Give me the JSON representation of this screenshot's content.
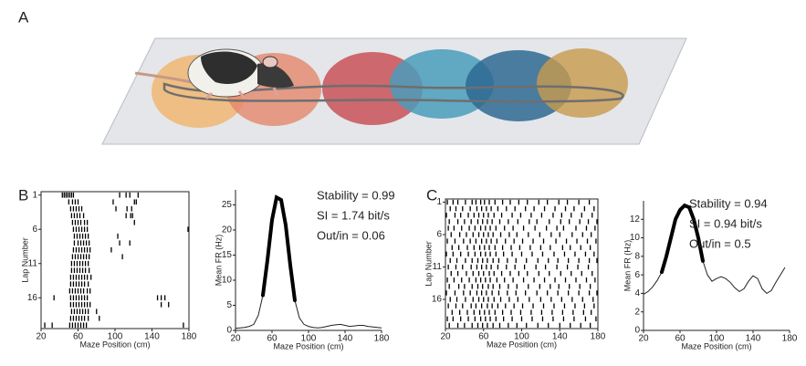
{
  "panel_labels": [
    "A",
    "B",
    "C"
  ],
  "chart_data": [
    {
      "type": "raster",
      "xlabel": "Maze Position (cm)",
      "ylabel": "Lap Number",
      "xlim": [
        20,
        180
      ],
      "xticks": [
        20,
        60,
        100,
        140,
        180
      ],
      "ylim": [
        0.5,
        20.5
      ],
      "yticks": [
        1,
        6,
        11,
        16
      ],
      "laps": [
        [
          43,
          45,
          47,
          49,
          51,
          53,
          55,
          105,
          112,
          116,
          125
        ],
        [
          50,
          54,
          57,
          60,
          98,
          121,
          123
        ],
        [
          52,
          55,
          58,
          61,
          64,
          101,
          113,
          118
        ],
        [
          53,
          56,
          59,
          62,
          66,
          112,
          117,
          119
        ],
        [
          54,
          57,
          60,
          63,
          67,
          70,
          121
        ],
        [
          55,
          58,
          61,
          64,
          67,
          70,
          179
        ],
        [
          56,
          59,
          62,
          65,
          68,
          71,
          103
        ],
        [
          56,
          60,
          63,
          66,
          69,
          72,
          105,
          116
        ],
        [
          55,
          58,
          61,
          64,
          67,
          70,
          73,
          96
        ],
        [
          54,
          57,
          60,
          63,
          66,
          69,
          72,
          108
        ],
        [
          53,
          56,
          59,
          62,
          65,
          68,
          71
        ],
        [
          53,
          56,
          59,
          62,
          65,
          68,
          72
        ],
        [
          52,
          55,
          58,
          61,
          64,
          67,
          70,
          74
        ],
        [
          52,
          55,
          58,
          61,
          64,
          67,
          71
        ],
        [
          51,
          54,
          57,
          60,
          63,
          66,
          70,
          73
        ],
        [
          34,
          52,
          55,
          58,
          61,
          64,
          67,
          70,
          146,
          150,
          154
        ],
        [
          52,
          55,
          58,
          61,
          64,
          67,
          70,
          73,
          150,
          158
        ],
        [
          53,
          56,
          59,
          62,
          65,
          68,
          71,
          80
        ],
        [
          52,
          55,
          58,
          61,
          64,
          67,
          71,
          83
        ],
        [
          24,
          32,
          51,
          54,
          57,
          60,
          63,
          66,
          69,
          174
        ]
      ]
    },
    {
      "type": "line",
      "xlabel": "Maze Position (cm)",
      "ylabel": "Mean FR (Hz)",
      "color": "#222",
      "xlim": [
        20,
        180
      ],
      "xticks": [
        20,
        60,
        100,
        140,
        180
      ],
      "ylim": [
        0,
        28
      ],
      "yticks": [
        0,
        5,
        10,
        15,
        20,
        25
      ],
      "x": [
        20,
        25,
        30,
        35,
        40,
        45,
        50,
        55,
        60,
        65,
        70,
        75,
        80,
        85,
        90,
        95,
        100,
        105,
        110,
        115,
        120,
        125,
        130,
        135,
        140,
        145,
        150,
        155,
        160,
        165,
        170,
        175,
        180
      ],
      "values": [
        0.4,
        0.5,
        0.6,
        0.8,
        1.2,
        3,
        7,
        14,
        22,
        26.5,
        26,
        21,
        13,
        6,
        2.5,
        1.2,
        0.8,
        0.6,
        0.5,
        0.6,
        0.8,
        1,
        1.1,
        1.2,
        1,
        0.8,
        0.9,
        1,
        1,
        0.8,
        0.7,
        0.6,
        0.5
      ],
      "highlight": [
        50,
        85
      ],
      "annotations": [
        "Stability = 0.99",
        "SI = 1.74 bit/s",
        "Out/in = 0.06"
      ]
    },
    {
      "type": "raster",
      "xlabel": "Maze Position (cm)",
      "ylabel": "Lap Number",
      "xlim": [
        20,
        180
      ],
      "xticks": [
        20,
        60,
        100,
        140,
        180
      ],
      "ylim": [
        0.5,
        20.5
      ],
      "yticks": [
        1,
        6,
        11,
        16
      ],
      "laps": [
        [
          22,
          28,
          33,
          41,
          48,
          52,
          57,
          61,
          66,
          72,
          80,
          88,
          97,
          106,
          118,
          127,
          139,
          148,
          160,
          171
        ],
        [
          25,
          31,
          38,
          46,
          53,
          58,
          63,
          68,
          75,
          84,
          93,
          104,
          113,
          124,
          135,
          146,
          155,
          166,
          176
        ],
        [
          21,
          30,
          36,
          44,
          50,
          55,
          60,
          65,
          71,
          79,
          90,
          99,
          110,
          121,
          133,
          142,
          152,
          163,
          174
        ],
        [
          24,
          33,
          40,
          47,
          54,
          59,
          64,
          69,
          77,
          86,
          96,
          108,
          116,
          129,
          141,
          150,
          161,
          170,
          179
        ],
        [
          23,
          29,
          37,
          45,
          51,
          57,
          62,
          67,
          73,
          82,
          91,
          102,
          114,
          126,
          137,
          144,
          157,
          168,
          177
        ],
        [
          26,
          35,
          42,
          49,
          55,
          60,
          65,
          70,
          78,
          87,
          95,
          107,
          119,
          131,
          140,
          153,
          164,
          173
        ],
        [
          22,
          30,
          39,
          46,
          52,
          58,
          63,
          68,
          74,
          83,
          92,
          101,
          112,
          123,
          136,
          147,
          158,
          169,
          178
        ],
        [
          27,
          34,
          43,
          50,
          56,
          61,
          66,
          72,
          80,
          89,
          98,
          109,
          120,
          130,
          143,
          151,
          162,
          172
        ],
        [
          21,
          28,
          36,
          44,
          51,
          57,
          62,
          67,
          73,
          81,
          90,
          100,
          111,
          122,
          134,
          145,
          156,
          167,
          176
        ],
        [
          25,
          32,
          41,
          48,
          54,
          59,
          64,
          70,
          76,
          85,
          94,
          105,
          117,
          128,
          138,
          149,
          160,
          171,
          179
        ],
        [
          23,
          31,
          38,
          47,
          53,
          58,
          63,
          68,
          75,
          84,
          93,
          103,
          115,
          125,
          137,
          148,
          159,
          170
        ],
        [
          26,
          33,
          42,
          49,
          55,
          60,
          66,
          71,
          79,
          88,
          97,
          106,
          118,
          129,
          141,
          152,
          163,
          174
        ],
        [
          22,
          29,
          37,
          45,
          52,
          57,
          62,
          67,
          74,
          82,
          91,
          102,
          113,
          124,
          135,
          146,
          157,
          168,
          177
        ],
        [
          24,
          34,
          40,
          48,
          54,
          59,
          65,
          70,
          77,
          86,
          95,
          107,
          119,
          130,
          139,
          150,
          161,
          172
        ],
        [
          21,
          30,
          39,
          46,
          53,
          58,
          63,
          69,
          76,
          85,
          94,
          104,
          116,
          127,
          138,
          149,
          160,
          171,
          179
        ],
        [
          25,
          32,
          41,
          49,
          55,
          60,
          65,
          71,
          78,
          87,
          96,
          108,
          120,
          131,
          142,
          153,
          164,
          175
        ],
        [
          23,
          31,
          38,
          47,
          52,
          58,
          64,
          69,
          75,
          83,
          92,
          101,
          112,
          123,
          134,
          145,
          156,
          166,
          176
        ],
        [
          27,
          35,
          43,
          50,
          56,
          61,
          66,
          72,
          80,
          89,
          99,
          110,
          121,
          132,
          143,
          154,
          165,
          173
        ],
        [
          22,
          28,
          36,
          44,
          51,
          57,
          62,
          67,
          73,
          81,
          90,
          100,
          111,
          122,
          133,
          144,
          155,
          167,
          178
        ],
        [
          24,
          33,
          40,
          48,
          54,
          59,
          64,
          70,
          77,
          86,
          95,
          105,
          117,
          128,
          140,
          151,
          162,
          172
        ]
      ]
    },
    {
      "type": "line",
      "xlabel": "Maze Position (cm)",
      "ylabel": "Mean FR (Hz)",
      "color": "#222",
      "xlim": [
        20,
        180
      ],
      "xticks": [
        20,
        60,
        100,
        140,
        180
      ],
      "ylim": [
        0,
        14
      ],
      "yticks": [
        0,
        2,
        4,
        6,
        8,
        10,
        12
      ],
      "x": [
        20,
        25,
        30,
        35,
        40,
        45,
        50,
        55,
        60,
        65,
        70,
        75,
        80,
        85,
        90,
        95,
        100,
        105,
        110,
        115,
        120,
        125,
        130,
        135,
        140,
        145,
        150,
        155,
        160,
        165,
        170,
        175
      ],
      "values": [
        3.9,
        4.2,
        4.7,
        5.4,
        6.3,
        8,
        10,
        12,
        13,
        13.5,
        13.3,
        12,
        10,
        7.5,
        6,
        5.3,
        5.6,
        5.8,
        5.6,
        5.2,
        4.6,
        4.2,
        4.5,
        5.3,
        5.9,
        5.6,
        4.5,
        4,
        4.3,
        5.2,
        6,
        6.8
      ],
      "highlight": [
        40,
        85
      ],
      "annotations": [
        "Stability = 0.94",
        "SI = 0.94 bit/s",
        "Out/in = 0.5"
      ]
    }
  ]
}
